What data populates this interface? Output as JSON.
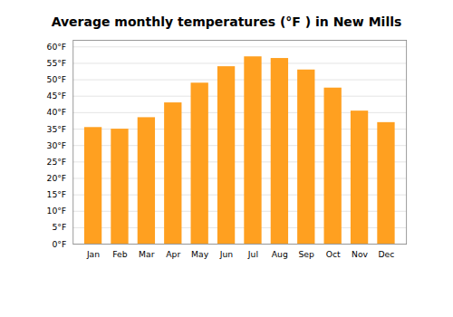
{
  "chart_data": {
    "type": "bar",
    "title": "Average monthly temperatures (°F ) in New Mills",
    "categories": [
      "Jan",
      "Feb",
      "Mar",
      "Apr",
      "May",
      "Jun",
      "Jul",
      "Aug",
      "Sep",
      "Oct",
      "Nov",
      "Dec"
    ],
    "values": [
      35.5,
      35.0,
      38.5,
      43.0,
      49.0,
      54.0,
      57.0,
      56.5,
      53.0,
      47.5,
      40.5,
      37.0
    ],
    "color": "#FFA020",
    "ylim": [
      0,
      62
    ],
    "yticks": [
      {
        "value": 0,
        "label": "0°F"
      },
      {
        "value": 5,
        "label": "5°F"
      },
      {
        "value": 10,
        "label": "10°F"
      },
      {
        "value": 15,
        "label": "15°F"
      },
      {
        "value": 20,
        "label": "20°F"
      },
      {
        "value": 25,
        "label": "25°F"
      },
      {
        "value": 30,
        "label": "30°F"
      },
      {
        "value": 35,
        "label": "35°F"
      },
      {
        "value": 40,
        "label": "40°F"
      },
      {
        "value": 45,
        "label": "45°F"
      },
      {
        "value": 50,
        "label": "50°F"
      },
      {
        "value": 55,
        "label": "55°F"
      },
      {
        "value": 60,
        "label": "60°F"
      }
    ],
    "grid": true
  }
}
